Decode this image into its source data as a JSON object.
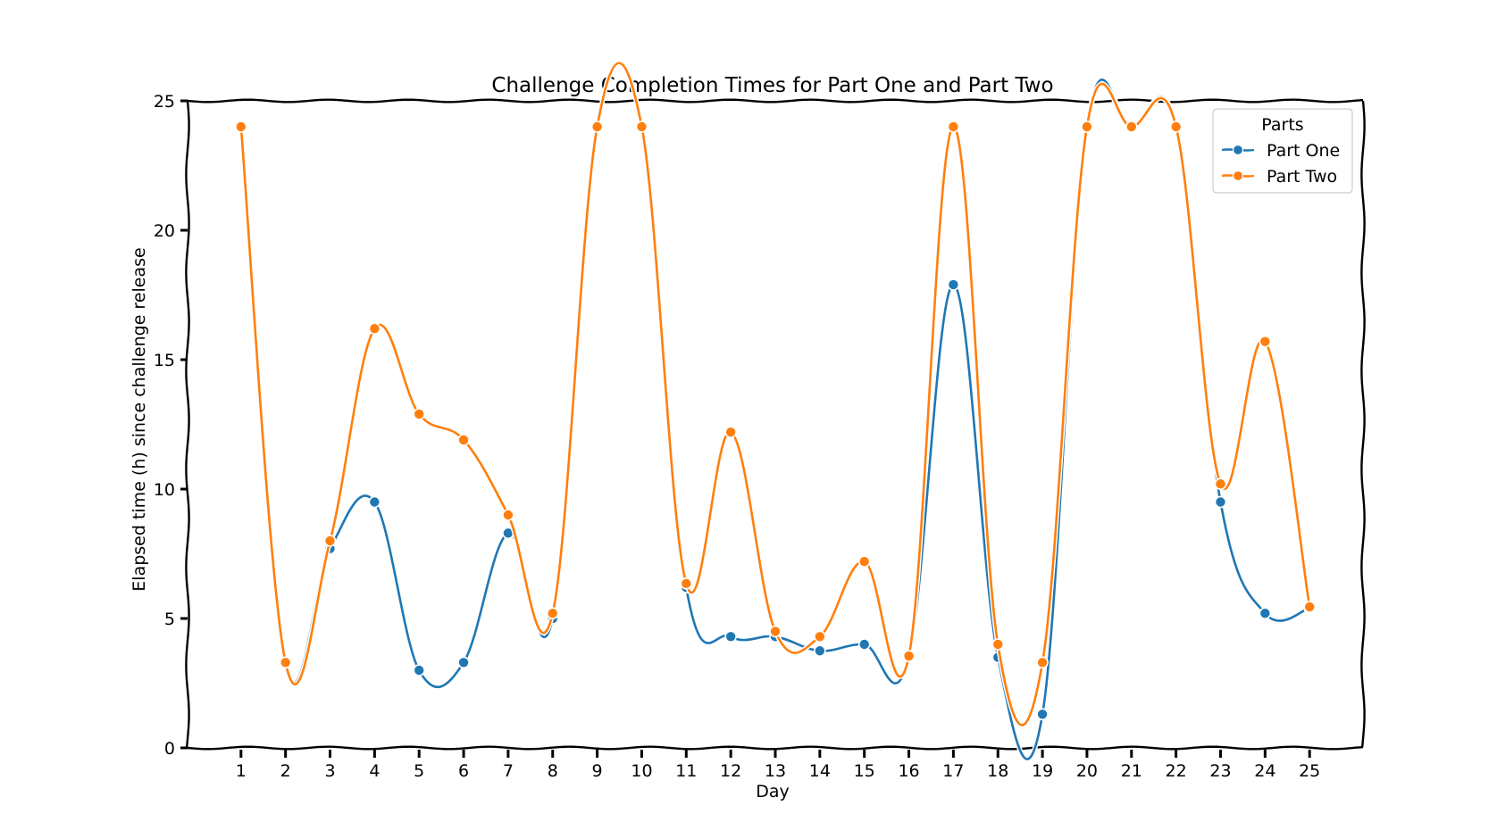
{
  "chart_data": {
    "type": "line",
    "title": "Challenge Completion Times for Part One and Part Two",
    "xlabel": "Day",
    "ylabel": "Elapsed time (h) since challenge release",
    "x": [
      1,
      2,
      3,
      4,
      5,
      6,
      7,
      8,
      9,
      10,
      11,
      12,
      13,
      14,
      15,
      16,
      17,
      18,
      19,
      20,
      21,
      22,
      23,
      24,
      25
    ],
    "x_ticks": [
      "1",
      "2",
      "3",
      "4",
      "5",
      "6",
      "7",
      "8",
      "9",
      "10",
      "11",
      "12",
      "13",
      "14",
      "15",
      "16",
      "17",
      "18",
      "19",
      "20",
      "21",
      "22",
      "23",
      "24",
      "25"
    ],
    "xlim": [
      -0.2,
      26.2
    ],
    "y_ticks": [
      0,
      5,
      10,
      15,
      20,
      25
    ],
    "ylim": [
      0,
      25
    ],
    "grid": false,
    "legend": {
      "title": "Parts",
      "placement": "top-right"
    },
    "series": [
      {
        "name": "Part One",
        "color": "#1f77b4",
        "values": [
          24,
          3.3,
          7.7,
          9.5,
          3.0,
          3.3,
          8.3,
          5.0,
          24,
          24,
          6.2,
          4.3,
          4.3,
          3.75,
          4.0,
          3.5,
          17.9,
          3.5,
          1.3,
          24,
          24,
          24,
          9.5,
          5.2,
          5.4
        ]
      },
      {
        "name": "Part Two",
        "color": "#ff7f0e",
        "values": [
          24,
          3.3,
          8.0,
          16.2,
          12.9,
          11.9,
          9.0,
          5.2,
          24,
          24,
          6.35,
          12.2,
          4.5,
          4.3,
          7.2,
          3.55,
          24,
          4.0,
          3.3,
          24,
          24,
          24,
          10.2,
          15.7,
          5.45
        ]
      }
    ]
  }
}
